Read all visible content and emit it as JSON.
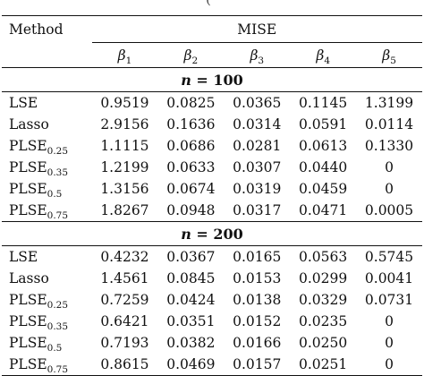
{
  "header": {
    "method": "Method",
    "mise": "MISE",
    "betas": [
      {
        "sym": "β",
        "sub": "1"
      },
      {
        "sym": "β",
        "sub": "2"
      },
      {
        "sym": "β",
        "sub": "3"
      },
      {
        "sym": "β",
        "sub": "4"
      },
      {
        "sym": "β",
        "sub": "5"
      }
    ]
  },
  "sections": [
    {
      "label": "n = 100",
      "rows": [
        {
          "method": "LSE",
          "sub": "",
          "values": [
            "0.9519",
            "0.0825",
            "0.0365",
            "0.1145",
            "1.3199"
          ]
        },
        {
          "method": "Lasso",
          "sub": "",
          "values": [
            "2.9156",
            "0.1636",
            "0.0314",
            "0.0591",
            "0.0114"
          ]
        },
        {
          "method": "PLSE",
          "sub": "0.25",
          "values": [
            "1.1115",
            "0.0686",
            "0.0281",
            "0.0613",
            "0.1330"
          ]
        },
        {
          "method": "PLSE",
          "sub": "0.35",
          "values": [
            "1.2199",
            "0.0633",
            "0.0307",
            "0.0440",
            "0"
          ]
        },
        {
          "method": "PLSE",
          "sub": "0.5",
          "values": [
            "1.3156",
            "0.0674",
            "0.0319",
            "0.0459",
            "0"
          ]
        },
        {
          "method": "PLSE",
          "sub": "0.75",
          "values": [
            "1.8267",
            "0.0948",
            "0.0317",
            "0.0471",
            "0.0005"
          ]
        }
      ]
    },
    {
      "label": "n = 200",
      "rows": [
        {
          "method": "LSE",
          "sub": "",
          "values": [
            "0.4232",
            "0.0367",
            "0.0165",
            "0.0563",
            "0.5745"
          ]
        },
        {
          "method": "Lasso",
          "sub": "",
          "values": [
            "1.4561",
            "0.0845",
            "0.0153",
            "0.0299",
            "0.0041"
          ]
        },
        {
          "method": "PLSE",
          "sub": "0.25",
          "values": [
            "0.7259",
            "0.0424",
            "0.0138",
            "0.0329",
            "0.0731"
          ]
        },
        {
          "method": "PLSE",
          "sub": "0.35",
          "values": [
            "0.6421",
            "0.0351",
            "0.0152",
            "0.0235",
            "0"
          ]
        },
        {
          "method": "PLSE",
          "sub": "0.5",
          "values": [
            "0.7193",
            "0.0382",
            "0.0166",
            "0.0250",
            "0"
          ]
        },
        {
          "method": "PLSE",
          "sub": "0.75",
          "values": [
            "0.8615",
            "0.0469",
            "0.0157",
            "0.0251",
            "0"
          ]
        }
      ]
    }
  ]
}
